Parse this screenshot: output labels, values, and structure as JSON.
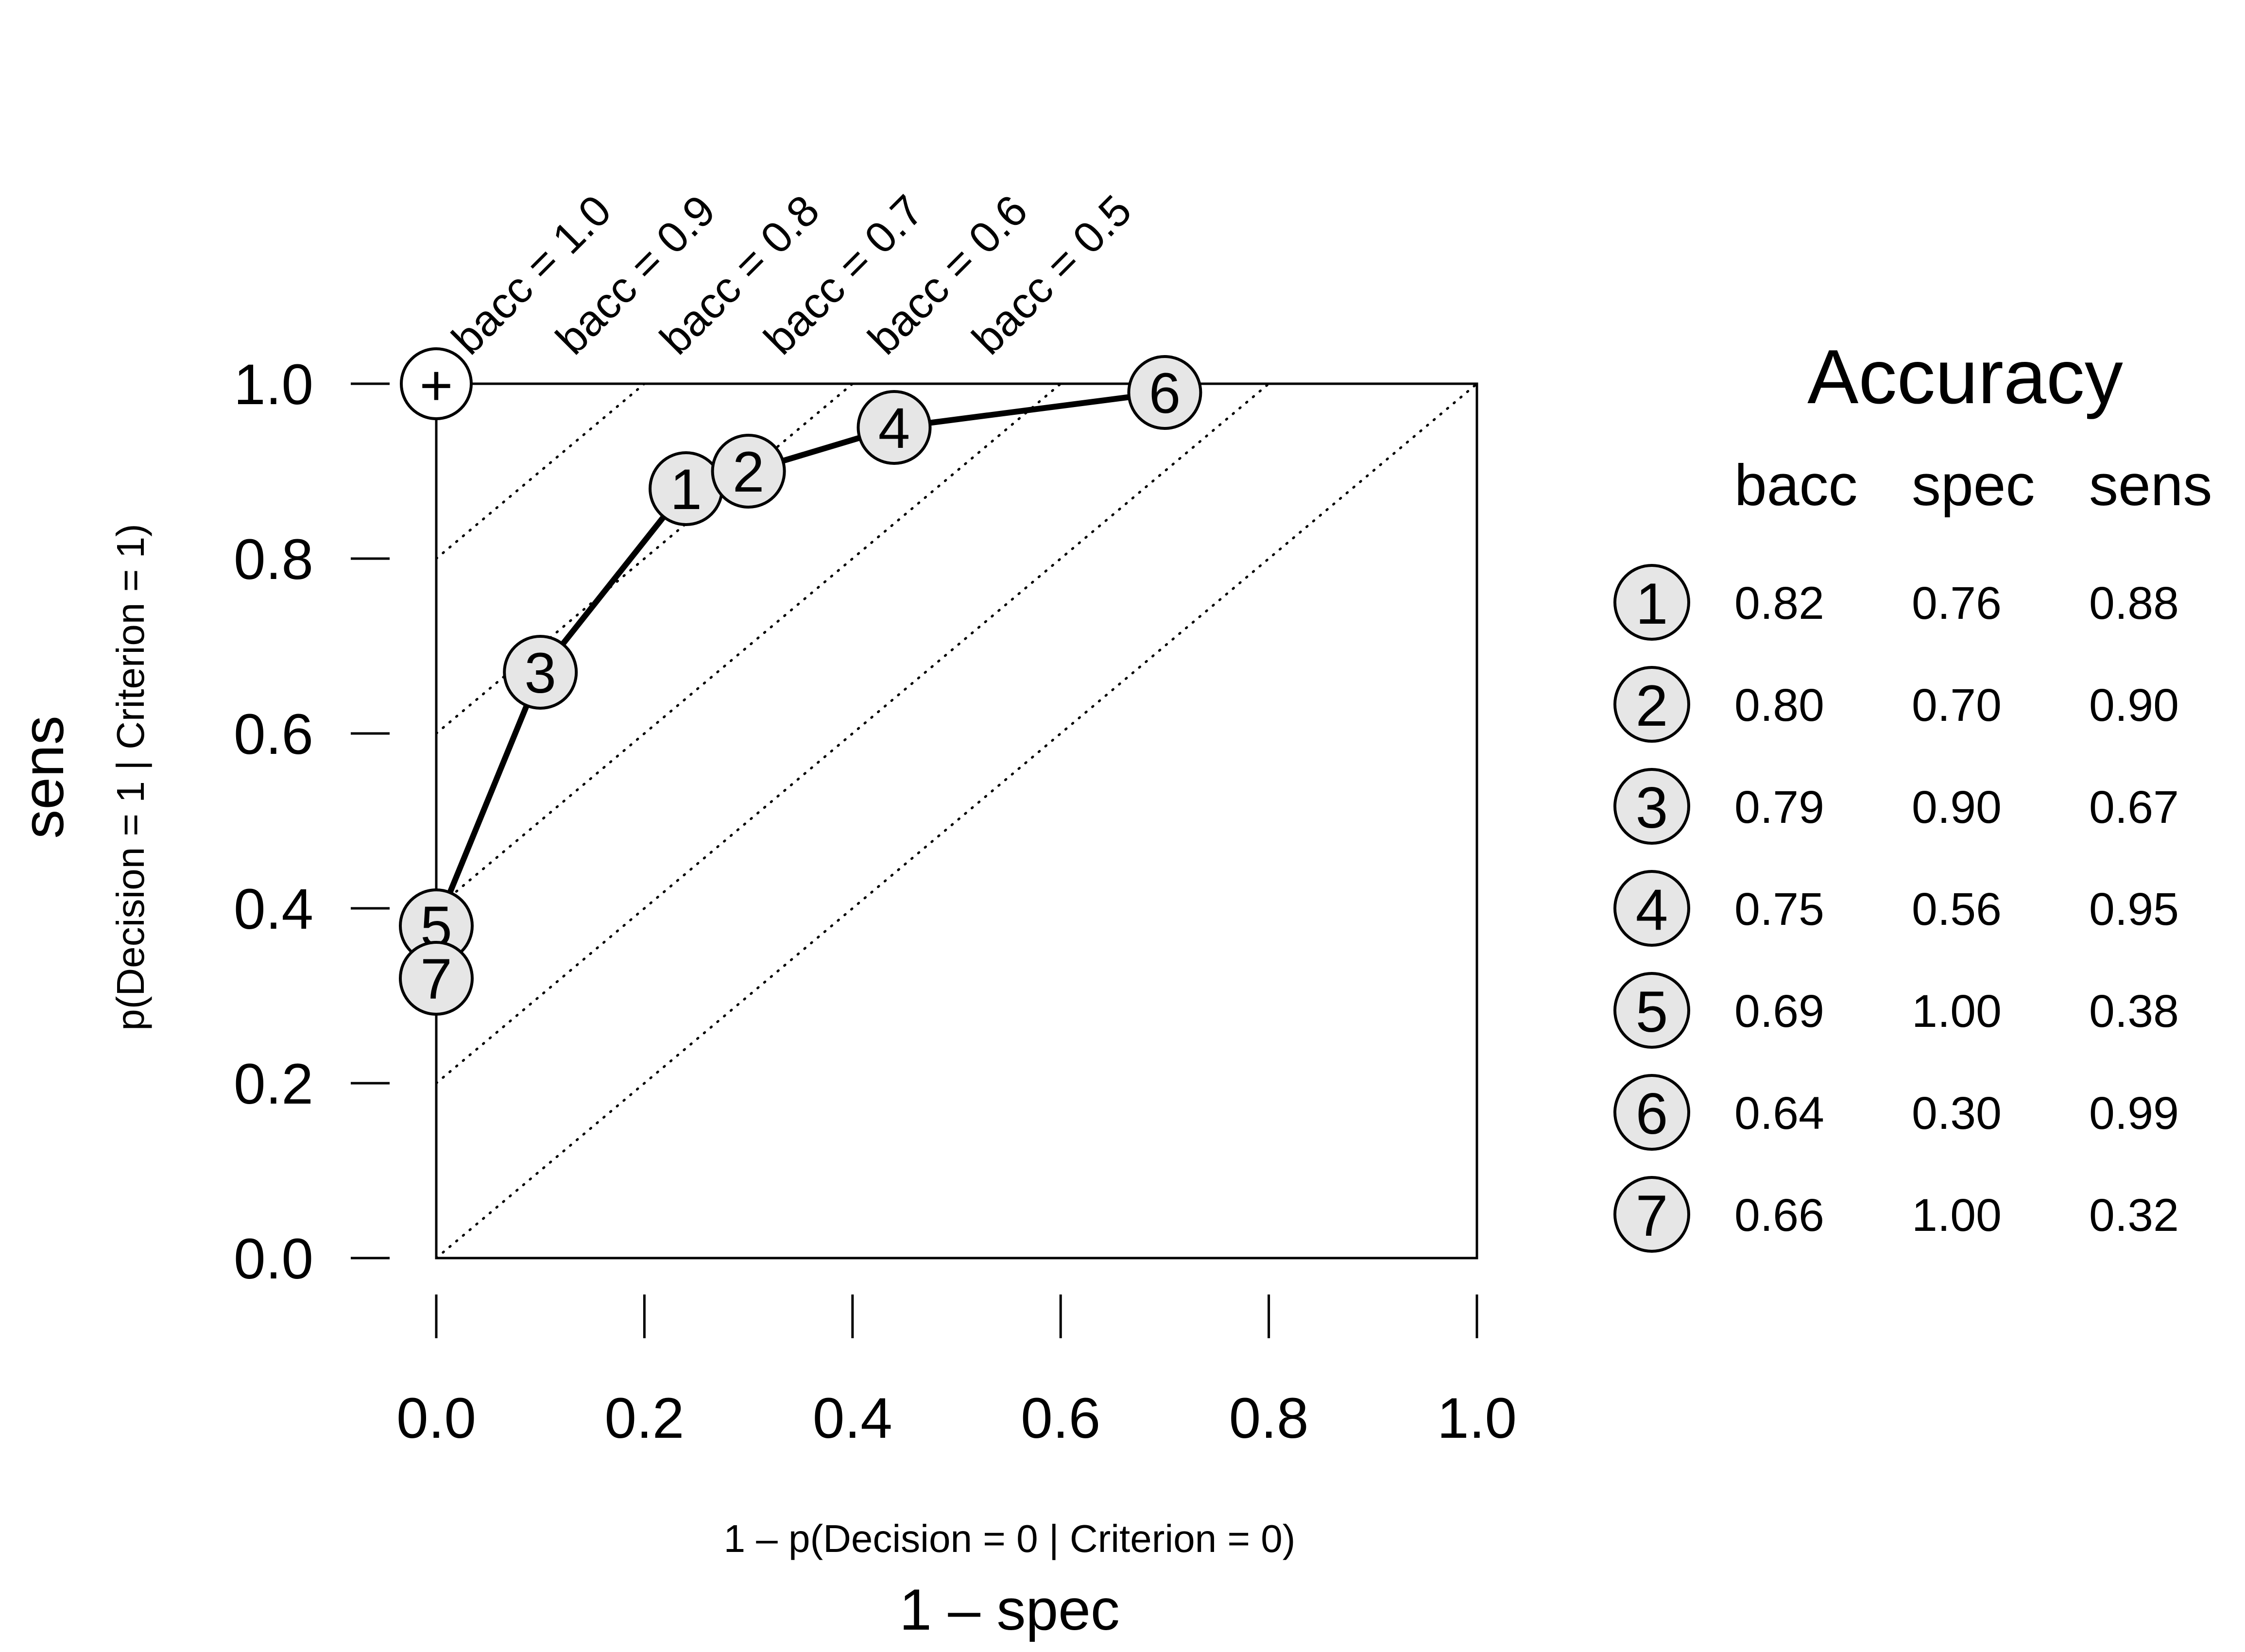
{
  "chart_data": {
    "type": "scatter",
    "xlabel": "1 – spec",
    "xsublabel": "1 – p(Decision = 0 | Criterion = 0)",
    "ylabel": "sens",
    "ysublabel": "p(Decision = 1 | Criterion = 1)",
    "xlim": [
      0,
      1
    ],
    "ylim": [
      0,
      1
    ],
    "x_ticks": [
      "0.0",
      "0.2",
      "0.4",
      "0.6",
      "0.8",
      "1.0"
    ],
    "y_ticks": [
      "0.0",
      "0.2",
      "0.4",
      "0.6",
      "0.8",
      "1.0"
    ],
    "bacc_lines": [
      {
        "value": 1.0,
        "label": "bacc = 1.0"
      },
      {
        "value": 0.9,
        "label": "bacc = 0.9"
      },
      {
        "value": 0.8,
        "label": "bacc = 0.8"
      },
      {
        "value": 0.7,
        "label": "bacc = 0.7"
      },
      {
        "value": 0.6,
        "label": "bacc = 0.6"
      },
      {
        "value": 0.5,
        "label": "bacc = 0.5"
      }
    ],
    "perfect_point": {
      "x": 0.0,
      "y": 1.0,
      "symbol": "+"
    },
    "curve_order": [
      "5",
      "3",
      "1",
      "2",
      "4",
      "6"
    ],
    "points": [
      {
        "id": "1",
        "bacc": "0.82",
        "spec": "0.76",
        "sens": "0.88",
        "x": 0.24,
        "y": 0.88
      },
      {
        "id": "2",
        "bacc": "0.80",
        "spec": "0.70",
        "sens": "0.90",
        "x": 0.3,
        "y": 0.9
      },
      {
        "id": "3",
        "bacc": "0.79",
        "spec": "0.90",
        "sens": "0.67",
        "x": 0.1,
        "y": 0.67
      },
      {
        "id": "4",
        "bacc": "0.75",
        "spec": "0.56",
        "sens": "0.95",
        "x": 0.44,
        "y": 0.95
      },
      {
        "id": "5",
        "bacc": "0.69",
        "spec": "1.00",
        "sens": "0.38",
        "x": 0.0,
        "y": 0.38
      },
      {
        "id": "6",
        "bacc": "0.64",
        "spec": "0.30",
        "sens": "0.99",
        "x": 0.7,
        "y": 0.99
      },
      {
        "id": "7",
        "bacc": "0.66",
        "spec": "1.00",
        "sens": "0.32",
        "x": 0.0,
        "y": 0.32
      }
    ],
    "legend": {
      "title": "Accuracy",
      "columns": [
        "bacc",
        "spec",
        "sens"
      ]
    },
    "colors": {
      "node_fill": "#e6e6e6",
      "perfect_fill": "#ffffff",
      "line": "#000000"
    }
  }
}
